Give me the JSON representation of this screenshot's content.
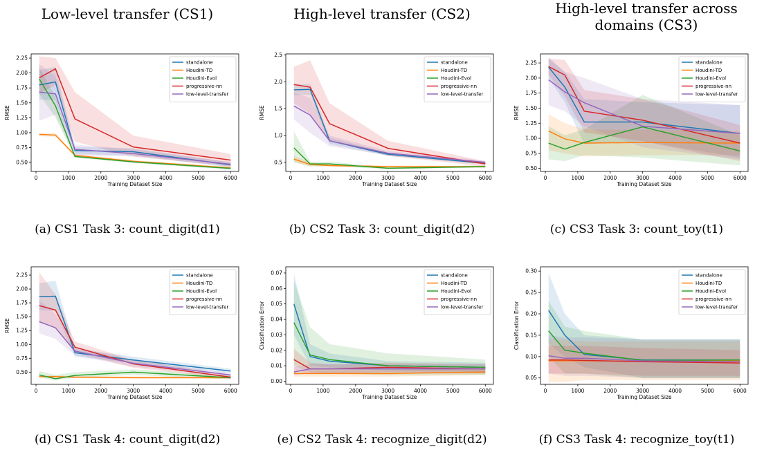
{
  "columns": [
    {
      "title": "Low-level transfer (CS1)"
    },
    {
      "title": "High-level transfer (CS2)"
    },
    {
      "title": "High-level transfer across domains (CS3)"
    }
  ],
  "colors": {
    "standalone": "#1f77b4",
    "Houdini-TD": "#ff7f0e",
    "Houdini-Evol": "#2ca02c",
    "progressive-nn": "#d62728",
    "low-level-transfer": "#9467bd"
  },
  "chart_data": [
    {
      "type": "line",
      "caption": "(a) CS1 Task 3: count_digit(d1)",
      "xlabel": "Training Dataset Size",
      "ylabel": "RMSE",
      "xlim": [
        -150,
        6250
      ],
      "ylim": [
        0.35,
        2.32
      ],
      "xticks": [
        0,
        1000,
        2000,
        3000,
        4000,
        5000,
        6000
      ],
      "yticks": [
        0.5,
        0.75,
        1.0,
        1.25,
        1.5,
        1.75,
        2.0,
        2.25
      ],
      "ytick_labels": [
        "0.50",
        "0.75",
        "1.00",
        "1.25",
        "1.50",
        "1.75",
        "2.00",
        "2.25"
      ],
      "legend": "top-right",
      "x": [
        100,
        600,
        1200,
        3000,
        6000
      ],
      "series": [
        {
          "name": "standalone",
          "values": [
            1.8,
            1.85,
            0.7,
            0.68,
            0.46
          ],
          "lower": [
            1.55,
            1.55,
            0.64,
            0.62,
            0.42
          ],
          "upper": [
            2.05,
            2.1,
            0.76,
            0.74,
            0.5
          ]
        },
        {
          "name": "Houdini-TD",
          "values": [
            0.97,
            0.96,
            0.62,
            0.52,
            0.41
          ],
          "lower": [
            0.94,
            0.93,
            0.6,
            0.5,
            0.39
          ],
          "upper": [
            1.0,
            0.99,
            0.64,
            0.54,
            0.43
          ]
        },
        {
          "name": "Houdini-Evol",
          "values": [
            1.9,
            1.45,
            0.6,
            0.51,
            0.4
          ],
          "lower": [
            1.65,
            1.25,
            0.58,
            0.49,
            0.38
          ],
          "upper": [
            2.1,
            1.6,
            0.62,
            0.53,
            0.42
          ]
        },
        {
          "name": "progressive-nn",
          "values": [
            1.92,
            2.07,
            1.23,
            0.76,
            0.54
          ],
          "lower": [
            1.65,
            1.8,
            0.85,
            0.6,
            0.44
          ],
          "upper": [
            2.28,
            2.25,
            1.68,
            0.95,
            0.64
          ]
        },
        {
          "name": "low-level-transfer",
          "values": [
            1.68,
            1.65,
            0.72,
            0.65,
            0.47
          ],
          "lower": [
            1.2,
            1.3,
            0.62,
            0.6,
            0.43
          ],
          "upper": [
            2.15,
            1.95,
            0.8,
            0.72,
            0.51
          ]
        }
      ]
    },
    {
      "type": "line",
      "caption": "(b) CS2 Task 3: count_digit(d2)",
      "xlabel": "Training Dataset Size",
      "ylabel": "RMSE",
      "xlim": [
        -150,
        6250
      ],
      "ylim": [
        0.33,
        2.52
      ],
      "xticks": [
        0,
        1000,
        2000,
        3000,
        4000,
        5000,
        6000
      ],
      "yticks": [
        0.5,
        1.0,
        1.5,
        2.0,
        2.5
      ],
      "ytick_labels": [
        "0.5",
        "1.0",
        "1.5",
        "2.0",
        "2.5"
      ],
      "legend": "top-right",
      "x": [
        100,
        600,
        1200,
        3000,
        6000
      ],
      "series": [
        {
          "name": "standalone",
          "values": [
            1.85,
            1.86,
            0.9,
            0.65,
            0.48
          ],
          "lower": [
            1.75,
            1.76,
            0.84,
            0.62,
            0.46
          ],
          "upper": [
            1.95,
            1.96,
            0.96,
            0.68,
            0.5
          ]
        },
        {
          "name": "Houdini-TD",
          "values": [
            0.56,
            0.46,
            0.44,
            0.42,
            0.42
          ],
          "lower": [
            0.5,
            0.42,
            0.42,
            0.4,
            0.4
          ],
          "upper": [
            0.62,
            0.5,
            0.46,
            0.44,
            0.44
          ]
        },
        {
          "name": "Houdini-Evol",
          "values": [
            0.77,
            0.47,
            0.47,
            0.39,
            0.42
          ],
          "lower": [
            0.5,
            0.43,
            0.43,
            0.37,
            0.4
          ],
          "upper": [
            1.08,
            0.51,
            0.51,
            0.41,
            0.44
          ]
        },
        {
          "name": "progressive-nn",
          "values": [
            1.95,
            1.9,
            1.22,
            0.76,
            0.47
          ],
          "lower": [
            1.6,
            1.4,
            0.9,
            0.62,
            0.42
          ],
          "upper": [
            2.28,
            2.4,
            1.6,
            0.9,
            0.52
          ]
        },
        {
          "name": "low-level-transfer",
          "values": [
            1.55,
            1.38,
            0.9,
            0.67,
            0.5
          ],
          "lower": [
            1.3,
            1.05,
            0.8,
            0.63,
            0.47
          ],
          "upper": [
            1.8,
            1.7,
            1.0,
            0.71,
            0.53
          ]
        }
      ]
    },
    {
      "type": "line",
      "caption": "(c) CS3 Task 3: count_toy(t1)",
      "xlabel": "Training Dataset Size",
      "ylabel": "RMSE",
      "xlim": [
        -150,
        6250
      ],
      "ylim": [
        0.45,
        2.4
      ],
      "xticks": [
        0,
        1000,
        2000,
        3000,
        4000,
        5000,
        6000
      ],
      "yticks": [
        0.5,
        0.75,
        1.0,
        1.25,
        1.5,
        1.75,
        2.0,
        2.25
      ],
      "ytick_labels": [
        "0.50",
        "0.75",
        "1.00",
        "1.25",
        "1.50",
        "1.75",
        "2.00",
        "2.25"
      ],
      "legend": "top-right",
      "x": [
        100,
        600,
        1200,
        3000,
        6000
      ],
      "series": [
        {
          "name": "standalone",
          "values": [
            2.18,
            1.85,
            1.27,
            1.27,
            1.08
          ],
          "lower": [
            2.0,
            1.6,
            0.9,
            0.95,
            0.68
          ],
          "upper": [
            2.32,
            2.1,
            1.65,
            1.6,
            1.55
          ]
        },
        {
          "name": "Houdini-TD",
          "values": [
            1.12,
            0.99,
            0.92,
            0.93,
            0.92
          ],
          "lower": [
            0.8,
            0.75,
            0.7,
            0.72,
            0.72
          ],
          "upper": [
            1.4,
            1.25,
            1.15,
            1.14,
            1.12
          ]
        },
        {
          "name": "Houdini-Evol",
          "values": [
            0.92,
            0.82,
            0.93,
            1.19,
            0.79
          ],
          "lower": [
            0.65,
            0.62,
            0.72,
            0.68,
            0.55
          ],
          "upper": [
            1.2,
            1.05,
            1.15,
            1.72,
            1.05
          ]
        },
        {
          "name": "progressive-nn",
          "values": [
            2.19,
            2.05,
            1.45,
            1.3,
            0.92
          ],
          "lower": [
            2.05,
            1.7,
            1.1,
            0.95,
            0.62
          ],
          "upper": [
            2.32,
            2.3,
            1.8,
            1.65,
            1.22
          ]
        },
        {
          "name": "low-level-transfer",
          "values": [
            1.97,
            1.77,
            1.59,
            1.2,
            1.08
          ],
          "lower": [
            1.55,
            1.45,
            1.2,
            0.85,
            0.65
          ],
          "upper": [
            2.35,
            2.1,
            2.0,
            1.65,
            1.55
          ]
        }
      ]
    },
    {
      "type": "line",
      "caption": "(d) CS1 Task 4: count_digit(d2)",
      "xlabel": "Training Dataset Size",
      "ylabel": "RMSE",
      "xlim": [
        -150,
        6250
      ],
      "ylim": [
        0.28,
        2.4
      ],
      "xticks": [
        0,
        1000,
        2000,
        3000,
        4000,
        5000,
        6000
      ],
      "yticks": [
        0.5,
        0.75,
        1.0,
        1.25,
        1.5,
        1.75,
        2.0,
        2.25
      ],
      "ytick_labels": [
        "0.50",
        "0.75",
        "1.00",
        "1.25",
        "1.50",
        "1.75",
        "2.00",
        "2.25"
      ],
      "legend": "top-right",
      "x": [
        100,
        600,
        1200,
        3000,
        6000
      ],
      "series": [
        {
          "name": "standalone",
          "values": [
            1.86,
            1.87,
            0.85,
            0.72,
            0.52
          ],
          "lower": [
            1.62,
            1.6,
            0.78,
            0.66,
            0.48
          ],
          "upper": [
            2.1,
            2.15,
            0.92,
            0.78,
            0.56
          ]
        },
        {
          "name": "Houdini-TD",
          "values": [
            0.42,
            0.42,
            0.41,
            0.4,
            0.4
          ],
          "lower": [
            0.4,
            0.4,
            0.39,
            0.38,
            0.38
          ],
          "upper": [
            0.44,
            0.44,
            0.43,
            0.42,
            0.42
          ]
        },
        {
          "name": "Houdini-Evol",
          "values": [
            0.45,
            0.38,
            0.44,
            0.5,
            0.4
          ],
          "lower": [
            0.4,
            0.35,
            0.4,
            0.45,
            0.37
          ],
          "upper": [
            0.52,
            0.45,
            0.5,
            0.55,
            0.44
          ]
        },
        {
          "name": "progressive-nn",
          "values": [
            1.7,
            1.62,
            0.95,
            0.65,
            0.41
          ],
          "lower": [
            1.4,
            1.3,
            0.85,
            0.58,
            0.38
          ],
          "upper": [
            2.3,
            1.9,
            1.05,
            0.72,
            0.45
          ]
        },
        {
          "name": "low-level-transfer",
          "values": [
            1.41,
            1.3,
            0.88,
            0.66,
            0.45
          ],
          "lower": [
            1.2,
            1.1,
            0.8,
            0.6,
            0.42
          ],
          "upper": [
            1.8,
            1.55,
            0.96,
            0.72,
            0.48
          ]
        }
      ]
    },
    {
      "type": "line",
      "caption": "(e) CS2 Task 4: recognize_digit(d2)",
      "xlabel": "Training Dataset Size",
      "ylabel": "Classification Error",
      "xlim": [
        -150,
        6250
      ],
      "ylim": [
        -0.002,
        0.074
      ],
      "xticks": [
        0,
        1000,
        2000,
        3000,
        4000,
        5000,
        6000
      ],
      "yticks": [
        0.0,
        0.01,
        0.02,
        0.03,
        0.04,
        0.05,
        0.06,
        0.07
      ],
      "ytick_labels": [
        "0.00",
        "0.01",
        "0.02",
        "0.03",
        "0.04",
        "0.05",
        "0.06",
        "0.07"
      ],
      "legend": "top-right",
      "x": [
        100,
        600,
        1200,
        3000,
        6000
      ],
      "series": [
        {
          "name": "standalone",
          "values": [
            0.05,
            0.016,
            0.013,
            0.01,
            0.009
          ],
          "lower": [
            0.03,
            0.01,
            0.009,
            0.007,
            0.006
          ],
          "upper": [
            0.07,
            0.024,
            0.018,
            0.013,
            0.012
          ]
        },
        {
          "name": "Houdini-TD",
          "values": [
            0.005,
            0.005,
            0.005,
            0.005,
            0.006
          ],
          "lower": [
            0.003,
            0.003,
            0.003,
            0.003,
            0.004
          ],
          "upper": [
            0.007,
            0.007,
            0.007,
            0.007,
            0.008
          ]
        },
        {
          "name": "Houdini-Evol",
          "values": [
            0.038,
            0.017,
            0.014,
            0.01,
            0.009
          ],
          "lower": [
            0.01,
            0.006,
            0.005,
            0.004,
            0.004
          ],
          "upper": [
            0.065,
            0.035,
            0.024,
            0.018,
            0.014
          ]
        },
        {
          "name": "progressive-nn",
          "values": [
            0.014,
            0.008,
            0.008,
            0.009,
            0.008
          ],
          "lower": [
            0.007,
            0.005,
            0.005,
            0.006,
            0.005
          ],
          "upper": [
            0.021,
            0.012,
            0.011,
            0.012,
            0.011
          ]
        },
        {
          "name": "low-level-transfer",
          "values": [
            0.006,
            0.008,
            0.008,
            0.008,
            0.008
          ],
          "lower": [
            0.004,
            0.005,
            0.005,
            0.005,
            0.005
          ],
          "upper": [
            0.009,
            0.011,
            0.011,
            0.011,
            0.011
          ]
        }
      ]
    },
    {
      "type": "line",
      "caption": "(f) CS3 Task 4: recognize_toy(t1)",
      "xlabel": "Training Dataset Size",
      "ylabel": "Classification Error",
      "xlim": [
        -150,
        6250
      ],
      "ylim": [
        0.035,
        0.31
      ],
      "xticks": [
        0,
        1000,
        2000,
        3000,
        4000,
        5000,
        6000
      ],
      "yticks": [
        0.05,
        0.1,
        0.15,
        0.2,
        0.25,
        0.3
      ],
      "ytick_labels": [
        "0.05",
        "0.10",
        "0.15",
        "0.20",
        "0.25",
        "0.30"
      ],
      "legend": "top-right",
      "x": [
        100,
        600,
        1200,
        3000,
        6000
      ],
      "series": [
        {
          "name": "standalone",
          "values": [
            0.208,
            0.15,
            0.105,
            0.092,
            0.092
          ],
          "lower": [
            0.13,
            0.1,
            0.075,
            0.05,
            0.05
          ],
          "upper": [
            0.295,
            0.2,
            0.15,
            0.14,
            0.14
          ]
        },
        {
          "name": "Houdini-TD",
          "values": [
            0.09,
            0.09,
            0.09,
            0.089,
            0.09
          ],
          "lower": [
            0.04,
            0.04,
            0.045,
            0.045,
            0.045
          ],
          "upper": [
            0.14,
            0.14,
            0.135,
            0.135,
            0.135
          ]
        },
        {
          "name": "Houdini-Evol",
          "values": [
            0.16,
            0.115,
            0.108,
            0.091,
            0.092
          ],
          "lower": [
            0.1,
            0.06,
            0.06,
            0.05,
            0.05
          ],
          "upper": [
            0.23,
            0.17,
            0.16,
            0.14,
            0.14
          ]
        },
        {
          "name": "progressive-nn",
          "values": [
            0.092,
            0.092,
            0.091,
            0.088,
            0.085
          ],
          "lower": [
            0.06,
            0.06,
            0.06,
            0.055,
            0.055
          ],
          "upper": [
            0.125,
            0.125,
            0.125,
            0.12,
            0.115
          ]
        },
        {
          "name": "low-level-transfer",
          "values": [
            0.102,
            0.096,
            0.096,
            0.09,
            0.088
          ],
          "lower": [
            0.06,
            0.055,
            0.055,
            0.05,
            0.05
          ],
          "upper": [
            0.15,
            0.145,
            0.145,
            0.14,
            0.14
          ]
        }
      ]
    }
  ]
}
